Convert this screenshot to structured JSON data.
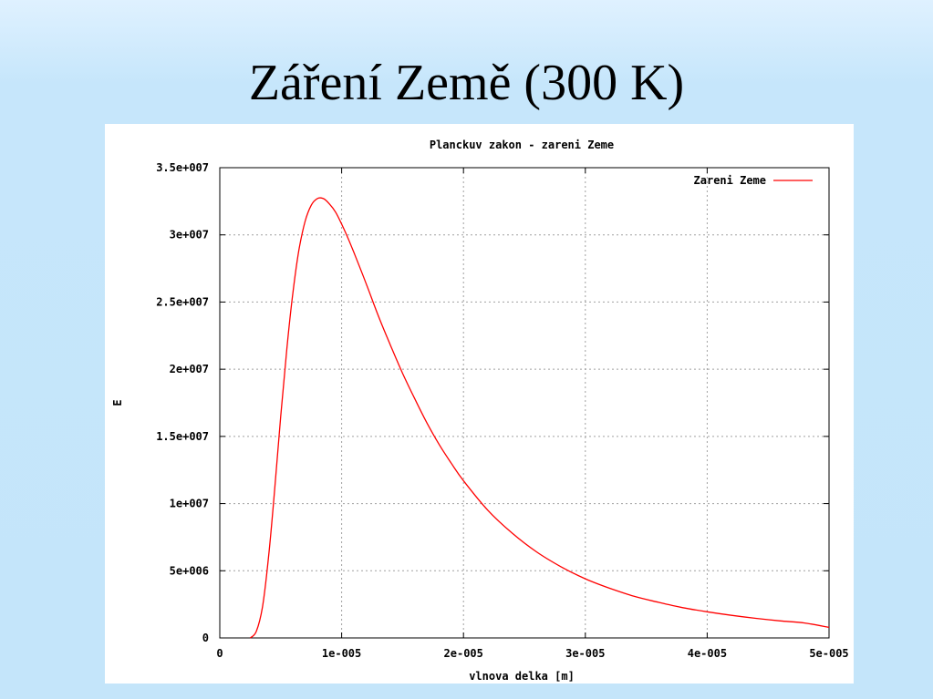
{
  "slide": {
    "title": "Záření Země (300 K)"
  },
  "chart_data": {
    "type": "line",
    "title": "Planckuv zakon - zareni Zeme",
    "xlabel": "vlnova delka [m]",
    "ylabel": "E",
    "xlim": [
      0,
      5e-05
    ],
    "ylim": [
      0,
      35000000
    ],
    "x_ticks": [
      0,
      1e-05,
      2e-05,
      3e-05,
      4e-05,
      5e-05
    ],
    "x_tick_labels": [
      "0",
      "1e-005",
      "2e-005",
      "3e-005",
      "4e-005",
      "5e-005"
    ],
    "y_ticks": [
      0,
      5000000,
      10000000,
      15000000,
      20000000,
      25000000,
      30000000,
      35000000
    ],
    "y_tick_labels": [
      "0",
      "5e+006",
      "1e+007",
      "1.5e+007",
      "2e+007",
      "2.5e+007",
      "3e+007",
      "3.5e+007"
    ],
    "grid": true,
    "legend_position": "top-right",
    "series": [
      {
        "name": "Zareni Zeme",
        "color": "#ff0000",
        "x": [
          2.5e-06,
          3e-06,
          3.5e-06,
          4e-06,
          4.5e-06,
          5e-06,
          5.5e-06,
          6e-06,
          6.5e-06,
          7e-06,
          7.5e-06,
          8e-06,
          8.5e-06,
          9e-06,
          9.5e-06,
          1e-05,
          1.05e-05,
          1.1e-05,
          1.2e-05,
          1.3e-05,
          1.4e-05,
          1.5e-05,
          1.6e-05,
          1.7e-05,
          1.8e-05,
          1.9e-05,
          2e-05,
          2.2e-05,
          2.4e-05,
          2.6e-05,
          2.8e-05,
          3e-05,
          3.2e-05,
          3.4e-05,
          3.6e-05,
          3.8e-05,
          4e-05,
          4.2e-05,
          4.4e-05,
          4.6e-05,
          4.8e-05,
          5e-05
        ],
        "y": [
          0,
          500000,
          2300000,
          6000000,
          11000000,
          16500000,
          21500000,
          25700000,
          28900000,
          31000000,
          32200000,
          32700000,
          32700000,
          32300000,
          31700000,
          30800000,
          29800000,
          28700000,
          26400000,
          24000000,
          21800000,
          19700000,
          17800000,
          16000000,
          14400000,
          13000000,
          11700000,
          9500000,
          7800000,
          6400000,
          5300000,
          4400000,
          3700000,
          3100000,
          2650000,
          2250000,
          1950000,
          1680000,
          1460000,
          1270000,
          1110000,
          790000
        ]
      }
    ]
  }
}
